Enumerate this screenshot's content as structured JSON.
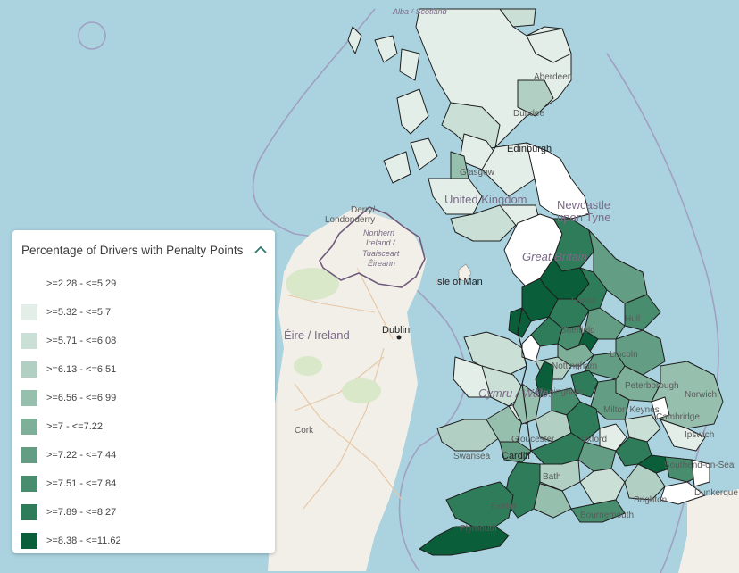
{
  "legend": {
    "title": "Percentage of Drivers with Penalty Points",
    "items": [
      {
        "label": ">=2.28 - <=5.29",
        "color": "#ffffff"
      },
      {
        "label": ">=5.32 - <=5.7",
        "color": "#e3eee9"
      },
      {
        "label": ">=5.71 - <=6.08",
        "color": "#cadfd6"
      },
      {
        "label": ">=6.13 - <=6.51",
        "color": "#b1cfc3"
      },
      {
        "label": ">=6.56 - <=6.99",
        "color": "#97bfae"
      },
      {
        "label": ">=7 - <=7.22",
        "color": "#7eaf99"
      },
      {
        "label": ">=7.22 - <=7.44",
        "color": "#639e84"
      },
      {
        "label": ">=7.51 - <=7.84",
        "color": "#498d6f"
      },
      {
        "label": ">=7.89 - <=8.27",
        "color": "#2e7c59"
      },
      {
        "label": ">=8.38 - <=11.62",
        "color": "#0b5e3a"
      }
    ]
  },
  "map_labels": {
    "alba": "Alba / Scotland",
    "aberdeen": "Aberdeen",
    "dundee": "Dundee",
    "edinburgh": "Edinburgh",
    "glasgow": "Glasgow",
    "united_kingdom": "United Kingdom",
    "newcastle_1": "Newcastle",
    "newcastle_2": "upon Tyne",
    "great_britain": "Great Britain",
    "derry_1": "Derry/",
    "derry_2": "Londonderry",
    "ni_1": "Northern",
    "ni_2": "Ireland /",
    "ni_3": "Tuaisceart",
    "ni_4": "Éireann",
    "isle_of_man": "Isle of Man",
    "eire": "Éire / Ireland",
    "dublin": "Dublin",
    "cork": "Cork",
    "leeds": "Leeds",
    "sheffield": "Sheffield",
    "hull": "Hull",
    "lincoln": "Lincoln",
    "nottingham": "Nottingham",
    "birmingham": "Birmingham",
    "peterborough": "Peterborough",
    "norwich": "Norwich",
    "cambridge": "Cambridge",
    "ipswich": "Ipswich",
    "milton_keynes": "Milton Keynes",
    "oxford": "Oxford",
    "gloucester": "Gloucester",
    "cardiff": "Cardiff",
    "swansea": "Swansea",
    "bath": "Bath",
    "exeter": "Exeter",
    "plymouth": "Plymouth",
    "bournemouth": "Bournemouth",
    "southend": "Southend-on-Sea",
    "brighton": "Brighton",
    "dunkerque": "Dunkerque",
    "cymru": "Cymru / Wales"
  }
}
